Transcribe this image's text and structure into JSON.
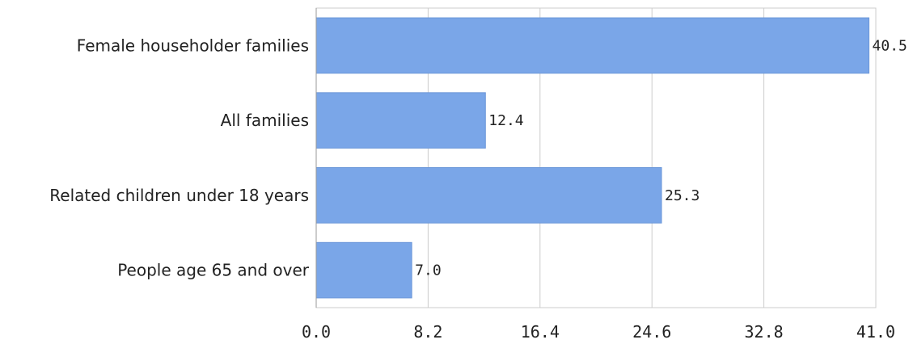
{
  "chart_data": {
    "type": "bar",
    "orientation": "horizontal",
    "categories": [
      "Female householder families",
      "All families",
      "Related children under 18 years",
      "People age 65 and over"
    ],
    "values": [
      40.5,
      12.4,
      25.3,
      7.0
    ],
    "value_labels": [
      "40.5",
      "12.4",
      "25.3",
      "7.0"
    ],
    "ticks": [
      "0.0",
      "8.2",
      "16.4",
      "24.6",
      "32.8",
      "41.0"
    ],
    "tick_values": [
      0,
      8.2,
      16.4,
      24.6,
      32.8,
      41.0
    ],
    "xlim": [
      0,
      41.0
    ],
    "grid": true,
    "bar_color": "#7aa6e8",
    "grid_color": "#cccccc",
    "axis_color": "#999999"
  }
}
